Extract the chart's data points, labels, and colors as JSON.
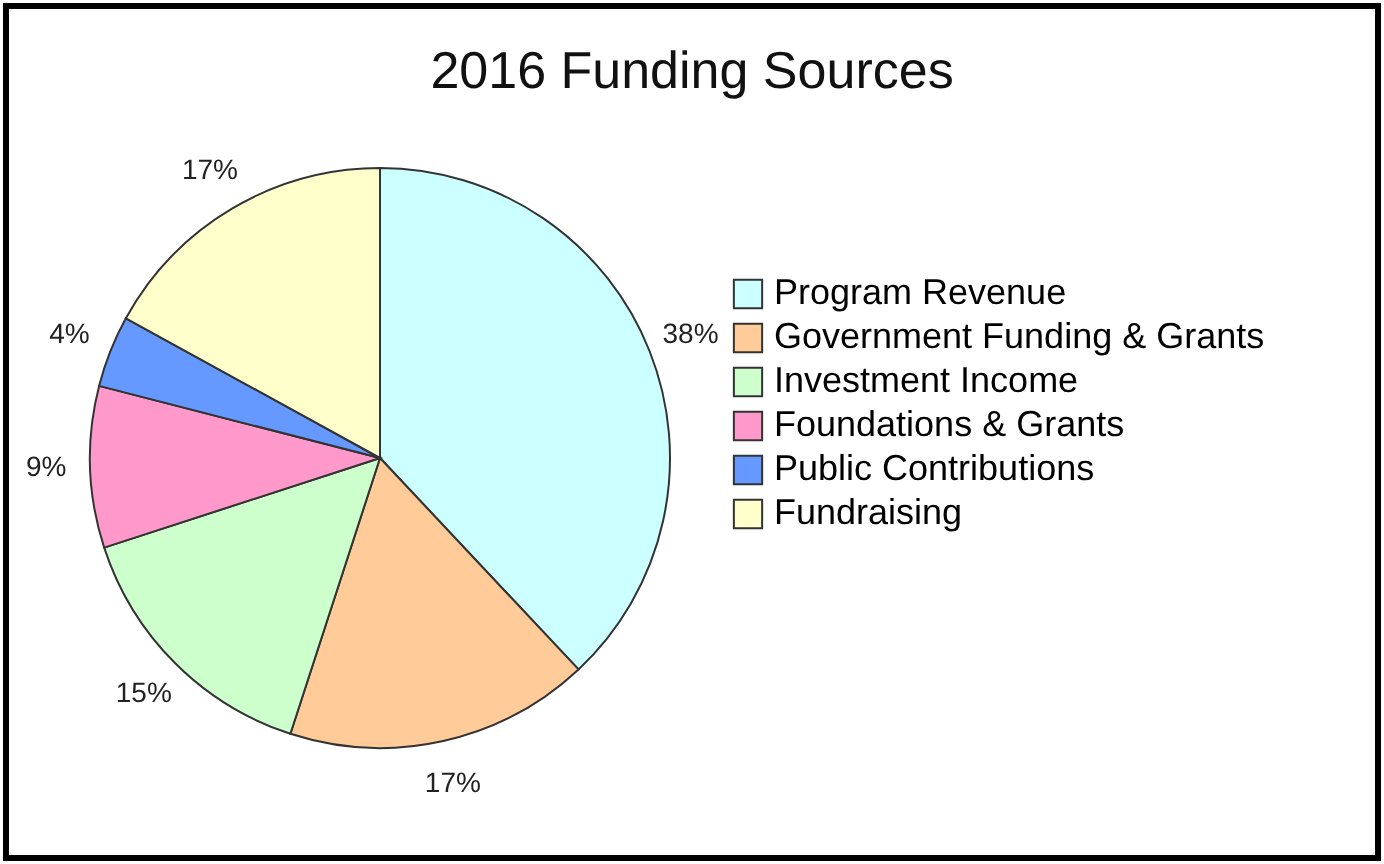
{
  "chart_data": {
    "type": "pie",
    "title": "2016 Funding Sources",
    "categories": [
      "Program Revenue",
      "Government Funding & Grants",
      "Investment Income",
      "Foundations & Grants",
      "Public Contributions",
      "Fundraising"
    ],
    "values": [
      38,
      17,
      15,
      9,
      4,
      17
    ],
    "colors": [
      "#ccffff",
      "#ffcc99",
      "#ccffcc",
      "#ff99cc",
      "#6699ff",
      "#ffffcc"
    ],
    "value_labels": [
      "38%",
      "17%",
      "15%",
      "9%",
      "4%",
      "17%"
    ],
    "legend": "right"
  }
}
